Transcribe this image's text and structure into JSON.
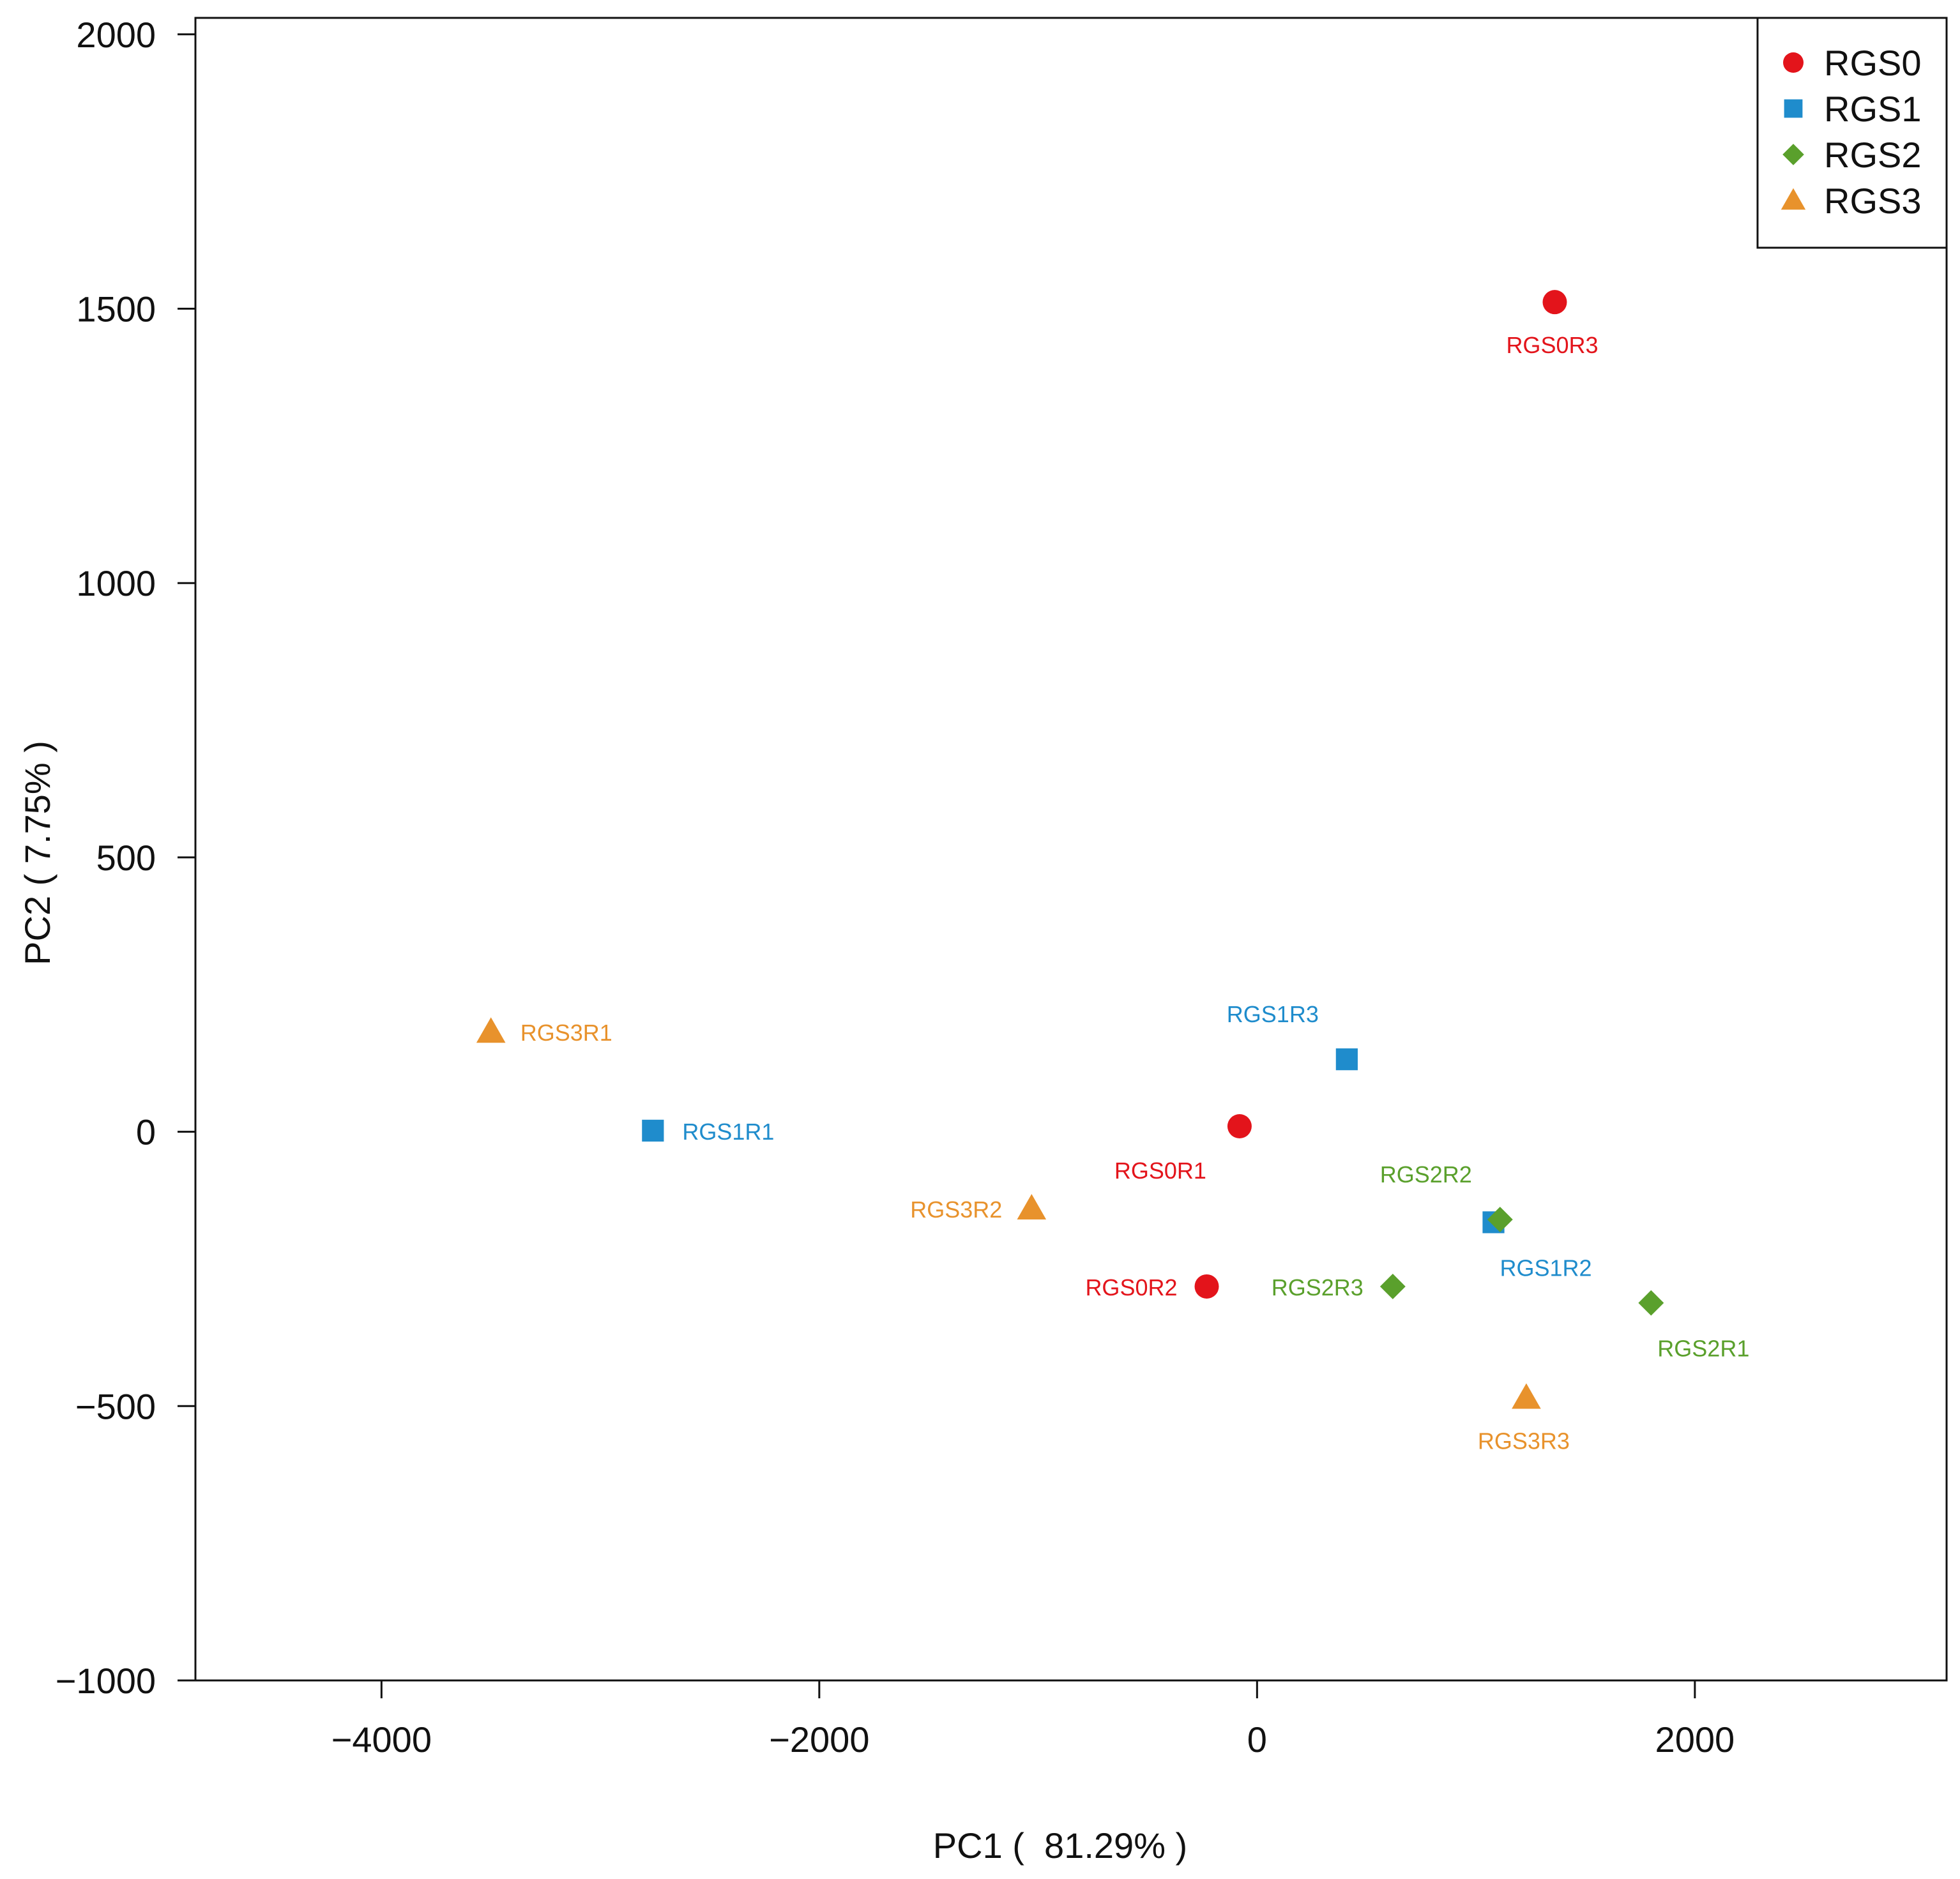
{
  "chart_data": {
    "type": "scatter",
    "title": "",
    "xlabel": "PC1 (  81.29% )",
    "ylabel": "PC2 ( 7.75% )",
    "xlim": [
      -4850,
      3150
    ],
    "ylim": [
      -1000,
      2030
    ],
    "x_ticks": [
      -4000,
      -2000,
      0,
      2000
    ],
    "x_tick_labels": [
      "−4000",
      "−2000",
      "0",
      "2000"
    ],
    "y_ticks": [
      -1000,
      -500,
      0,
      500,
      1000,
      1500,
      2000
    ],
    "y_tick_labels": [
      "−1000",
      "−500",
      "0",
      "500",
      "1000",
      "1500",
      "2000"
    ],
    "grid": false,
    "legend_position": "top-right",
    "series": [
      {
        "name": "RGS0",
        "marker": "circle",
        "color": "#e3141b",
        "points": [
          {
            "label": "RGS0R1",
            "x": -80,
            "y": 10,
            "label_side": "below-left"
          },
          {
            "label": "RGS0R2",
            "x": -230,
            "y": -282,
            "label_side": "left"
          },
          {
            "label": "RGS0R3",
            "x": 1360,
            "y": 1512,
            "label_side": "below"
          }
        ]
      },
      {
        "name": "RGS1",
        "marker": "square",
        "color": "#1f8ccc",
        "points": [
          {
            "label": "RGS1R1",
            "x": -2760,
            "y": 2,
            "label_side": "right"
          },
          {
            "label": "RGS1R2",
            "x": 1080,
            "y": -165,
            "label_side": "below-right"
          },
          {
            "label": "RGS1R3",
            "x": 410,
            "y": 132,
            "label_side": "above-left"
          }
        ]
      },
      {
        "name": "RGS2",
        "marker": "diamond",
        "color": "#5aa02c",
        "points": [
          {
            "label": "RGS2R1",
            "x": 1800,
            "y": -312,
            "label_side": "below-right"
          },
          {
            "label": "RGS2R2",
            "x": 1110,
            "y": -160,
            "label_side": "above-left"
          },
          {
            "label": "RGS2R3",
            "x": 620,
            "y": -282,
            "label_side": "left"
          }
        ]
      },
      {
        "name": "RGS3",
        "marker": "triangle",
        "color": "#e8922c",
        "points": [
          {
            "label": "RGS3R1",
            "x": -3500,
            "y": 182,
            "label_side": "right"
          },
          {
            "label": "RGS3R2",
            "x": -1030,
            "y": -140,
            "label_side": "left"
          },
          {
            "label": "RGS3R3",
            "x": 1230,
            "y": -485,
            "label_side": "below"
          }
        ]
      }
    ]
  }
}
